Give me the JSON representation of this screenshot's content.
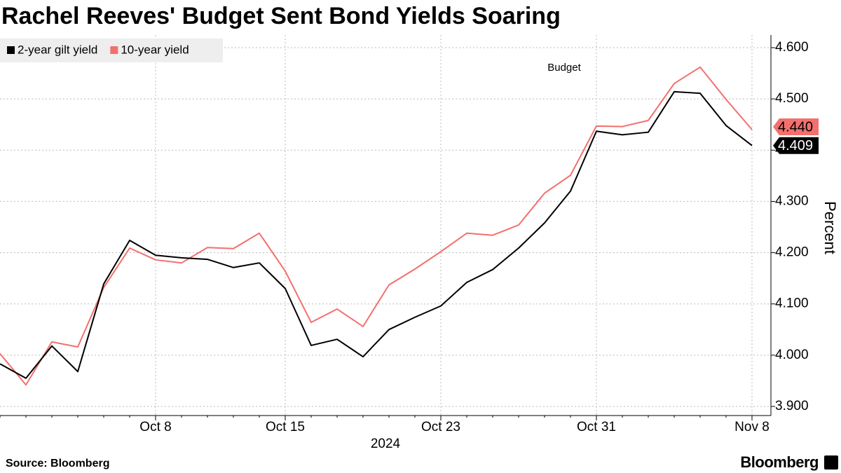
{
  "chart_data": {
    "type": "line",
    "title": "Rachel Reeves' Budget Sent Bond Yields Soaring",
    "x_label": "2024",
    "y_label": "Percent",
    "annotation": "Budget",
    "source": "Source: Bloomberg",
    "brand": "Bloomberg",
    "categories": [
      null,
      null,
      null,
      null,
      null,
      null,
      "Oct 8",
      null,
      null,
      null,
      null,
      "Oct 15",
      null,
      null,
      null,
      null,
      null,
      "Oct 23",
      null,
      null,
      null,
      null,
      null,
      "Oct 31",
      null,
      null,
      null,
      null,
      null,
      "Nov 8"
    ],
    "series": [
      {
        "name": "2-year gilt yield",
        "color": "#000000",
        "values": [
          3.983,
          3.955,
          4.018,
          3.968,
          4.139,
          4.224,
          4.195,
          4.19,
          4.187,
          4.171,
          4.18,
          4.13,
          4.019,
          4.031,
          3.997,
          4.05,
          4.074,
          4.096,
          4.142,
          4.167,
          4.209,
          4.258,
          4.32,
          4.437,
          4.43,
          4.435,
          4.514,
          4.511,
          4.448,
          4.409
        ],
        "value_labels": [
          null,
          null,
          null,
          null,
          null,
          null,
          null,
          null,
          null,
          null,
          null,
          null,
          null,
          null,
          null,
          null,
          null,
          null,
          null,
          null,
          null,
          null,
          null,
          null,
          null,
          null,
          null,
          null,
          null,
          "4.409"
        ]
      },
      {
        "name": "10-year yield",
        "color": "#f2706e",
        "values": [
          4.003,
          3.942,
          4.026,
          4.016,
          4.132,
          4.209,
          4.186,
          4.18,
          4.21,
          4.208,
          4.238,
          4.164,
          4.064,
          4.09,
          4.056,
          4.137,
          4.168,
          4.202,
          4.238,
          4.234,
          4.254,
          4.316,
          4.351,
          4.447,
          4.446,
          4.458,
          4.53,
          4.562,
          4.499,
          4.44
        ],
        "value_labels": [
          null,
          null,
          null,
          null,
          null,
          null,
          null,
          null,
          null,
          null,
          null,
          null,
          null,
          null,
          null,
          null,
          null,
          null,
          null,
          null,
          null,
          null,
          null,
          null,
          null,
          null,
          null,
          null,
          null,
          "4.440"
        ]
      }
    ],
    "ylim": [
      3.9,
      4.6
    ],
    "yticks": [
      {
        "value": 3.9,
        "label": "3.900"
      },
      {
        "value": 4.0,
        "label": "4.000"
      },
      {
        "value": 4.1,
        "label": "4.100"
      },
      {
        "value": 4.2,
        "label": "4.200"
      },
      {
        "value": 4.3,
        "label": "4.300"
      },
      {
        "value": 4.4,
        "label": "4.400"
      },
      {
        "value": 4.5,
        "label": "4.500"
      },
      {
        "value": 4.6,
        "label": "4.600"
      }
    ],
    "grid": true,
    "legend": "top-left"
  }
}
